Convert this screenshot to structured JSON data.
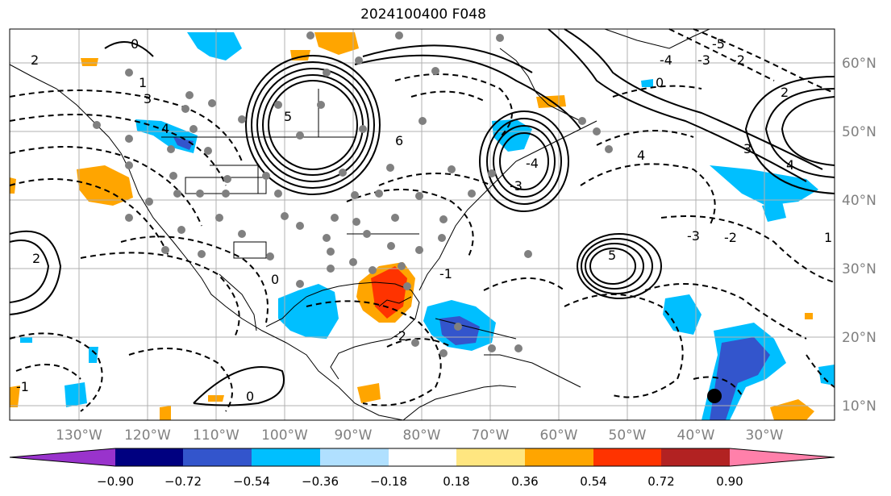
{
  "title": "2024100400 F048",
  "map": {
    "lon_ticks": [
      "130°W",
      "120°W",
      "110°W",
      "100°W",
      "90°W",
      "80°W",
      "70°W",
      "60°W",
      "50°W",
      "40°W",
      "30°W"
    ],
    "lat_ticks": [
      "60°N",
      "50°N",
      "40°N",
      "30°N",
      "20°N",
      "10°N"
    ],
    "contour_labels": [
      "0",
      "2",
      "1",
      "3",
      "4",
      "5",
      "6",
      "0",
      "-1",
      "-2",
      "-3",
      "-4",
      "5",
      "2",
      "0",
      "4",
      "-3",
      "-2",
      "1",
      "2",
      "3",
      "4",
      "-5",
      "-4",
      "-3",
      "-2",
      "-1",
      "0"
    ],
    "colors": {
      "grid": "#b0b0b0",
      "tick_text": "#808080",
      "coast": "#000000",
      "station": "#808080"
    }
  },
  "colorbar": {
    "tick_labels": [
      "−0.90",
      "−0.72",
      "−0.54",
      "−0.36",
      "−0.18",
      "0.18",
      "0.36",
      "0.54",
      "0.72",
      "0.90"
    ],
    "colors": [
      "#9933cc",
      "#000080",
      "#3355cc",
      "#00bfff",
      "#b0e0ff",
      "#ffffff",
      "#ffe680",
      "#ffa500",
      "#ff3300",
      "#b22222",
      "#ff80aa"
    ]
  }
}
